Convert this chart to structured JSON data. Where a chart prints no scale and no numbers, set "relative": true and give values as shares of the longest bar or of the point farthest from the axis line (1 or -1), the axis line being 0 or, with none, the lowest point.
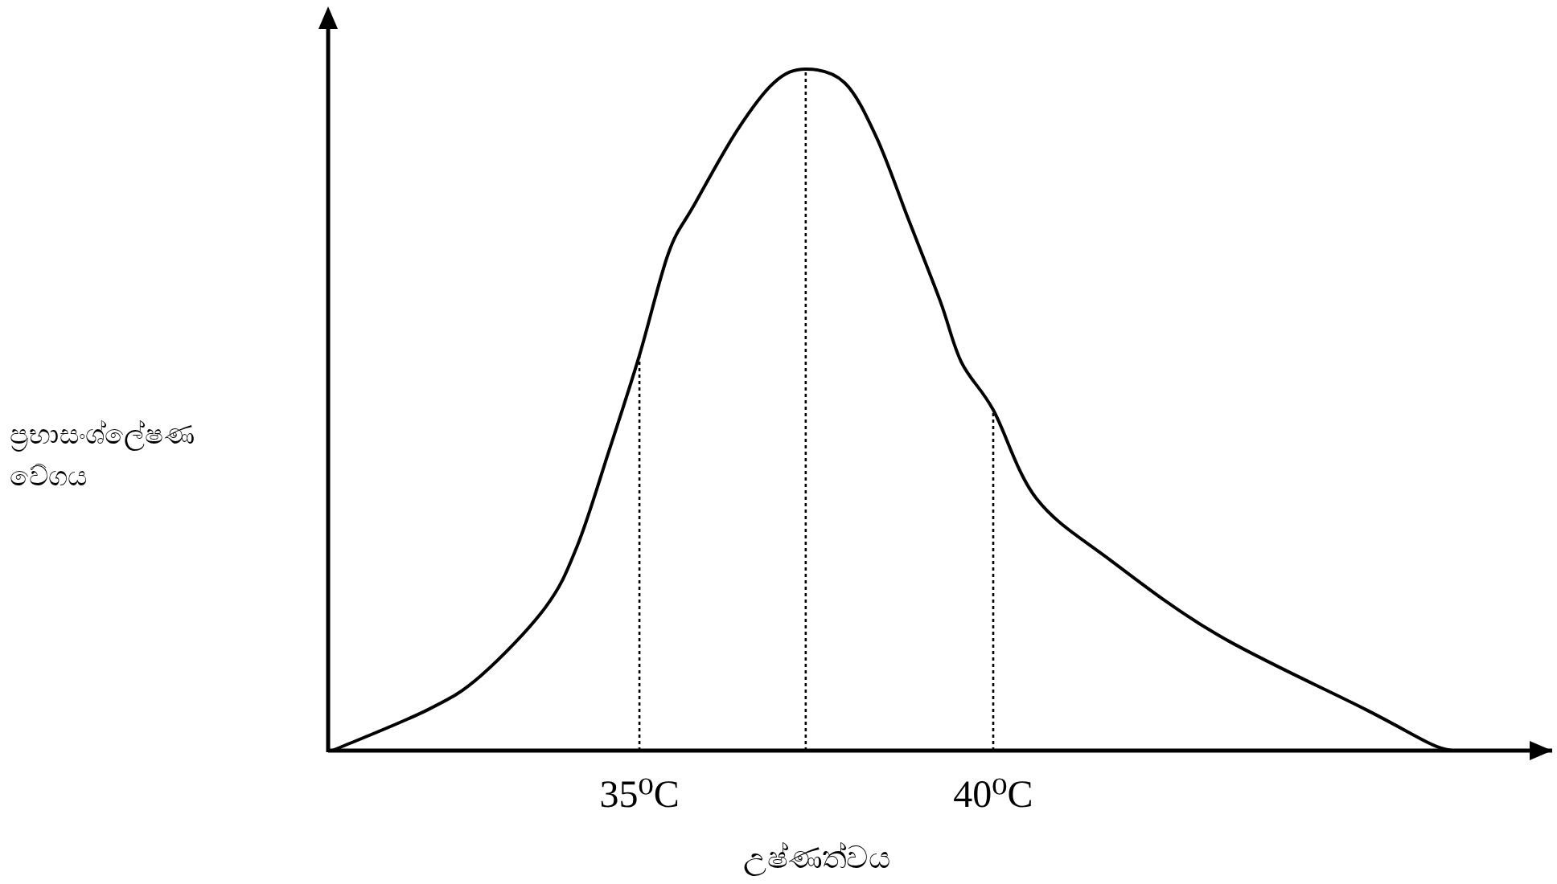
{
  "chart_data": {
    "type": "line",
    "xlabel": "උෂ්ණත්වය",
    "ylabel": "ප්‍රභාසංශ්ලේෂණ වේගය",
    "relative": true,
    "xlim": [
      30.6,
      47.9
    ],
    "xticks": [
      {
        "value": 35,
        "label": "35⁰C"
      },
      {
        "value": 40,
        "label": "40⁰C"
      }
    ],
    "x": [
      30.66,
      32.01,
      32.76,
      33.67,
      34.12,
      34.57,
      35,
      35.41,
      35.77,
      36.38,
      36.9,
      37.35,
      37.9,
      38.35,
      38.8,
      39.25,
      39.55,
      40,
      40.61,
      41.65,
      43.17,
      45.27,
      46.18,
      46.49
    ],
    "series": [
      {
        "color": "#000000",
        "values": [
          0,
          0.06,
          0.11,
          0.21,
          0.3,
          0.44,
          0.58,
          0.73,
          0.8,
          0.91,
          0.98,
          1,
          0.98,
          0.9,
          0.78,
          0.66,
          0.57,
          0.5,
          0.37,
          0.28,
          0.17,
          0.06,
          0.01,
          0
        ]
      }
    ],
    "ref_lines": [
      {
        "axis": "x",
        "value": 35,
        "line_style": "dotted"
      },
      {
        "axis": "x",
        "value": 37.35,
        "line_style": "dotted"
      },
      {
        "axis": "x",
        "value": 40,
        "line_style": "dotted"
      }
    ]
  }
}
